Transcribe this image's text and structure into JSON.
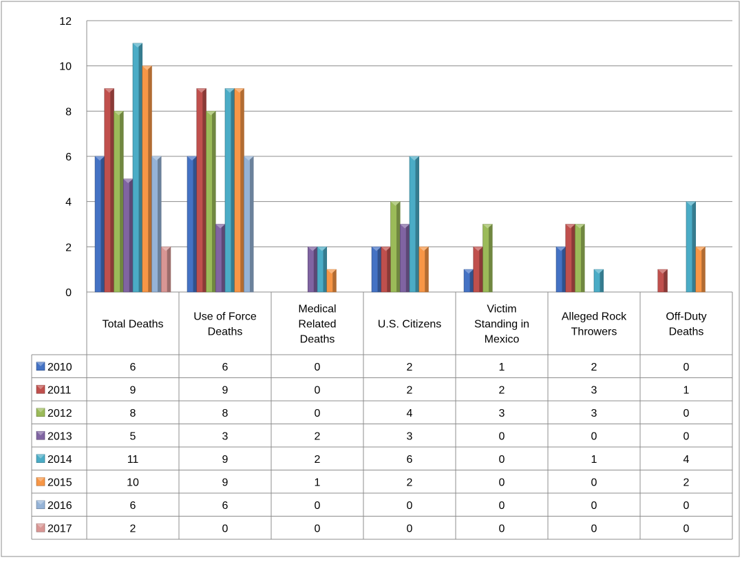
{
  "chart_data": {
    "type": "bar",
    "title": "",
    "xlabel": "",
    "ylabel": "",
    "ylim": [
      0,
      12
    ],
    "y_ticks": [
      "0",
      "2",
      "4",
      "6",
      "8",
      "10",
      "12"
    ],
    "grid": true,
    "legend_placement": "data-table-left",
    "categories": [
      [
        "Total Deaths"
      ],
      [
        "Use of Force",
        "Deaths"
      ],
      [
        "Medical",
        "Related",
        "Deaths"
      ],
      [
        "U.S. Citizens"
      ],
      [
        "Victim",
        "Standing in",
        "Mexico"
      ],
      [
        "Alleged Rock",
        "Throwers"
      ],
      [
        "Off-Duty",
        "Deaths"
      ]
    ],
    "series": [
      {
        "name": "2010",
        "color": "#4472C4",
        "values": [
          6,
          6,
          0,
          2,
          1,
          2,
          0
        ]
      },
      {
        "name": "2011",
        "color": "#C0504D",
        "values": [
          9,
          9,
          0,
          2,
          2,
          3,
          1
        ]
      },
      {
        "name": "2012",
        "color": "#9BBB59",
        "values": [
          8,
          8,
          0,
          4,
          3,
          3,
          0
        ]
      },
      {
        "name": "2013",
        "color": "#8064A2",
        "values": [
          5,
          3,
          2,
          3,
          0,
          0,
          0
        ]
      },
      {
        "name": "2014",
        "color": "#4BACC6",
        "values": [
          11,
          9,
          2,
          6,
          0,
          1,
          4
        ]
      },
      {
        "name": "2015",
        "color": "#F79646",
        "values": [
          10,
          9,
          1,
          2,
          0,
          0,
          2
        ]
      },
      {
        "name": "2016",
        "color": "#95B3D7",
        "values": [
          6,
          6,
          0,
          0,
          0,
          0,
          0
        ]
      },
      {
        "name": "2017",
        "color": "#D99694",
        "values": [
          2,
          0,
          0,
          0,
          0,
          0,
          0
        ]
      }
    ]
  }
}
